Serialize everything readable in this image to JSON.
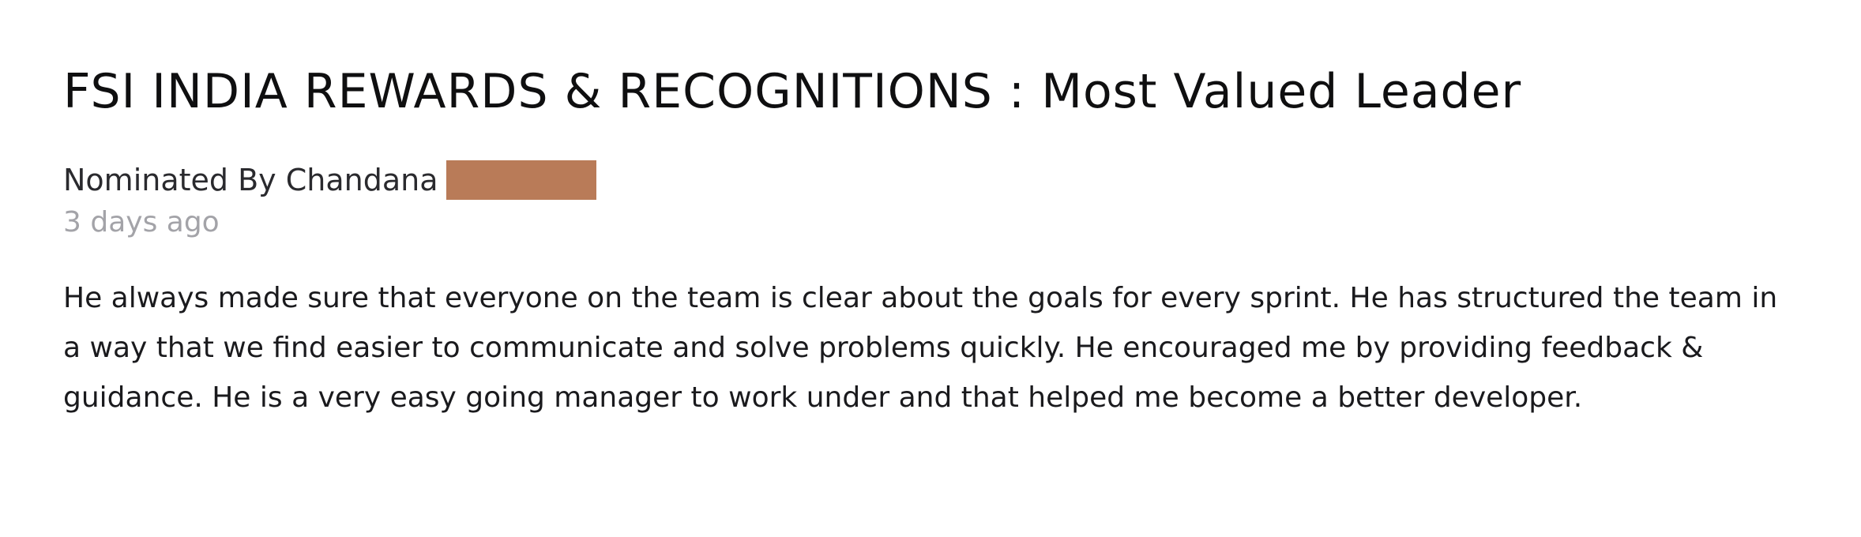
{
  "post": {
    "title": "FSI INDIA REWARDS & RECOGNITIONS : Most Valued Leader",
    "nominated_by": "Nominated By Chandana",
    "timestamp": "3 days ago",
    "message": "He always made sure that everyone on the team is clear about the goals for every sprint. He has structured the team in a way that we find easier to communicate and solve problems quickly. He encouraged me by providing feedback & guidance. He is a very easy going manager to work under and that helped me become a better developer."
  },
  "colors": {
    "redaction": "#b97b58",
    "timestamp": "#a3a3a8"
  }
}
